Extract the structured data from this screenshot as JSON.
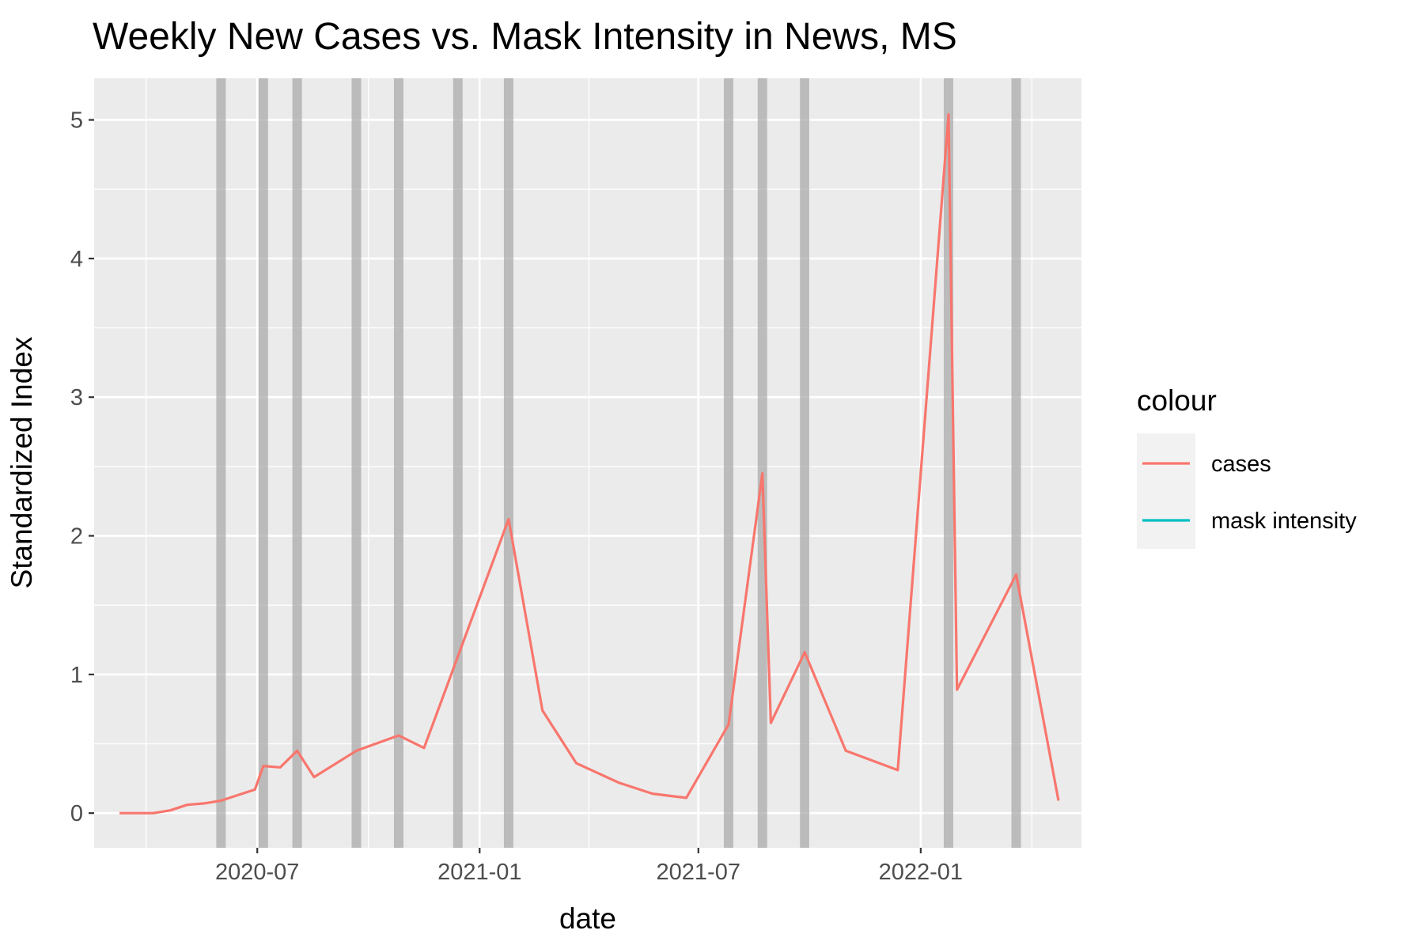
{
  "chart_data": {
    "type": "line",
    "title": "Weekly New Cases vs. Mask Intensity in News, MS",
    "xlabel": "date",
    "ylabel": "Standardized Index",
    "x_ticks": [
      "2020-07",
      "2021-01",
      "2021-07",
      "2022-01"
    ],
    "y_ticks": [
      "0",
      "1",
      "2",
      "3",
      "4",
      "5"
    ],
    "ylim": [
      -0.25,
      5.3
    ],
    "xlim": [
      "2020-02-17",
      "2022-05-14"
    ],
    "grid": true,
    "legend": {
      "title": "colour",
      "position": "right",
      "entries": [
        {
          "name": "cases",
          "color": "#F8766D"
        },
        {
          "name": "mask intensity",
          "color": "#00BFC4"
        }
      ]
    },
    "highlight_dates": [
      "2020-06-01",
      "2020-07-06",
      "2020-08-03",
      "2020-09-21",
      "2020-10-26",
      "2020-12-14",
      "2021-01-25",
      "2021-07-26",
      "2021-08-23",
      "2021-09-27",
      "2022-01-24",
      "2022-03-21"
    ],
    "series": [
      {
        "name": "cases",
        "color": "#F8766D",
        "points": [
          {
            "x": "2020-03-09",
            "y": 0.0
          },
          {
            "x": "2020-04-06",
            "y": 0.0
          },
          {
            "x": "2020-04-20",
            "y": 0.02
          },
          {
            "x": "2020-05-04",
            "y": 0.06
          },
          {
            "x": "2020-05-18",
            "y": 0.07
          },
          {
            "x": "2020-06-01",
            "y": 0.09
          },
          {
            "x": "2020-06-29",
            "y": 0.17
          },
          {
            "x": "2020-07-06",
            "y": 0.34
          },
          {
            "x": "2020-07-20",
            "y": 0.33
          },
          {
            "x": "2020-08-03",
            "y": 0.45
          },
          {
            "x": "2020-08-17",
            "y": 0.26
          },
          {
            "x": "2020-09-21",
            "y": 0.45
          },
          {
            "x": "2020-10-26",
            "y": 0.56
          },
          {
            "x": "2020-11-16",
            "y": 0.47
          },
          {
            "x": "2021-01-25",
            "y": 2.12
          },
          {
            "x": "2021-02-22",
            "y": 0.74
          },
          {
            "x": "2021-03-22",
            "y": 0.36
          },
          {
            "x": "2021-04-26",
            "y": 0.22
          },
          {
            "x": "2021-05-24",
            "y": 0.14
          },
          {
            "x": "2021-06-21",
            "y": 0.11
          },
          {
            "x": "2021-07-26",
            "y": 0.64
          },
          {
            "x": "2021-08-23",
            "y": 2.45
          },
          {
            "x": "2021-08-30",
            "y": 0.65
          },
          {
            "x": "2021-09-27",
            "y": 1.16
          },
          {
            "x": "2021-10-31",
            "y": 0.45
          },
          {
            "x": "2021-12-13",
            "y": 0.31
          },
          {
            "x": "2022-01-24",
            "y": 5.04
          },
          {
            "x": "2022-01-31",
            "y": 0.89
          },
          {
            "x": "2022-03-21",
            "y": 1.72
          },
          {
            "x": "2022-04-25",
            "y": 0.09
          }
        ]
      },
      {
        "name": "mask intensity",
        "color": "#00BFC4",
        "points": []
      }
    ]
  }
}
